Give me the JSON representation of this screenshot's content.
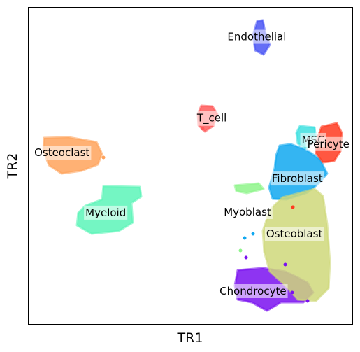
{
  "chart_data": {
    "type": "scatter",
    "title": "",
    "xlabel": "TR1",
    "ylabel": "TR2",
    "xticks": [],
    "yticks": [],
    "grid": false,
    "legend": "none",
    "xlim": [
      0,
      100
    ],
    "ylim": [
      0,
      100
    ],
    "clusters": [
      {
        "name": "Endothelial",
        "color": "#4a55f5",
        "x": 70.5,
        "y": 90.8
      },
      {
        "name": "T_cell",
        "color": "#ff5a5a",
        "x": 56.6,
        "y": 65.1
      },
      {
        "name": "Osteoclast",
        "color": "#ffa35c",
        "x": 10.3,
        "y": 54.2
      },
      {
        "name": "MSC",
        "color": "#3ee0e0",
        "x": 87.9,
        "y": 58.2
      },
      {
        "name": "Pericyte",
        "color": "#ff3a20",
        "x": 92.6,
        "y": 56.9
      },
      {
        "name": "Fibroblast",
        "color": "#10a8f0",
        "x": 83.0,
        "y": 46.0
      },
      {
        "name": "Myeloid",
        "color": "#5cf5b8",
        "x": 23.8,
        "y": 35.2
      },
      {
        "name": "Myoblast",
        "color": "#8ef58a",
        "x": 67.6,
        "y": 35.4
      },
      {
        "name": "Osteoblast",
        "color": "#cfd87a",
        "x": 82.1,
        "y": 28.5
      },
      {
        "name": "Chondrocyte",
        "color": "#7a10f0",
        "x": 69.3,
        "y": 10.4
      }
    ]
  }
}
